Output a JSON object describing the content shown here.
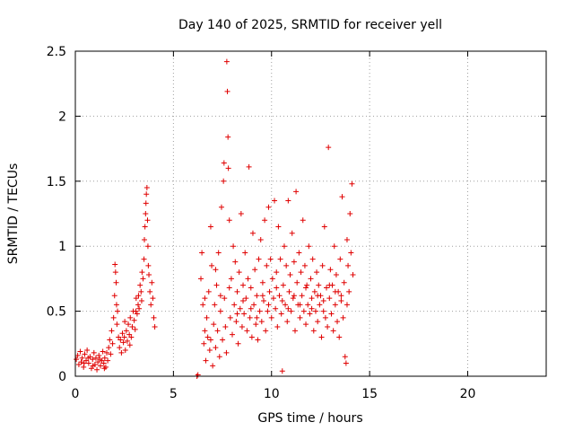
{
  "chart_data": {
    "type": "scatter",
    "title": "Day 140 of 2025, SRMTID for receiver yell",
    "xlabel": "GPS time / hours",
    "ylabel": "SRMTID / TECUs",
    "xlim": [
      0,
      24
    ],
    "ylim": [
      0,
      2.5
    ],
    "xticks": [
      0,
      5,
      10,
      15,
      20
    ],
    "yticks": [
      0,
      0.5,
      1,
      1.5,
      2,
      2.5
    ],
    "xtick_labels": [
      "0",
      "5",
      "10",
      "15",
      "20"
    ],
    "ytick_labels": [
      "0",
      "0.5",
      "1",
      "1.5",
      "2",
      "2.5"
    ],
    "grid": true,
    "marker": "+",
    "series": [
      {
        "name": "SRMTID",
        "color": "#e00000",
        "points": [
          [
            0.05,
            0.13
          ],
          [
            0.12,
            0.16
          ],
          [
            0.18,
            0.09
          ],
          [
            0.25,
            0.19
          ],
          [
            0.3,
            0.11
          ],
          [
            0.35,
            0.14
          ],
          [
            0.42,
            0.07
          ],
          [
            0.48,
            0.17
          ],
          [
            0.55,
            0.12
          ],
          [
            0.6,
            0.2
          ],
          [
            0.68,
            0.1
          ],
          [
            0.75,
            0.15
          ],
          [
            0.82,
            0.06
          ],
          [
            0.88,
            0.13
          ],
          [
            0.95,
            0.18
          ],
          [
            1.0,
            0.09
          ],
          [
            1.05,
            0.14
          ],
          [
            1.1,
            0.05
          ],
          [
            1.15,
            0.11
          ],
          [
            1.2,
            0.16
          ],
          [
            1.28,
            0.08
          ],
          [
            1.35,
            0.12
          ],
          [
            1.4,
            0.19
          ],
          [
            1.45,
            0.1
          ],
          [
            1.5,
            0.14
          ],
          [
            1.55,
            0.07
          ],
          [
            1.6,
            0.18
          ],
          [
            1.65,
            0.12
          ],
          [
            1.7,
            0.22
          ],
          [
            1.75,
            0.28
          ],
          [
            1.8,
            0.17
          ],
          [
            1.85,
            0.35
          ],
          [
            1.9,
            0.25
          ],
          [
            1.95,
            0.45
          ],
          [
            2.0,
            0.62
          ],
          [
            2.02,
            0.86
          ],
          [
            2.05,
            0.8
          ],
          [
            2.08,
            0.72
          ],
          [
            2.1,
            0.55
          ],
          [
            2.12,
            0.4
          ],
          [
            2.15,
            0.5
          ],
          [
            2.2,
            0.3
          ],
          [
            2.25,
            0.22
          ],
          [
            2.3,
            0.28
          ],
          [
            2.35,
            0.18
          ],
          [
            2.4,
            0.33
          ],
          [
            2.45,
            0.26
          ],
          [
            2.5,
            0.3
          ],
          [
            2.55,
            0.2
          ],
          [
            2.6,
            0.35
          ],
          [
            2.65,
            0.27
          ],
          [
            2.7,
            0.4
          ],
          [
            2.75,
            0.32
          ],
          [
            2.8,
            0.45
          ],
          [
            2.85,
            0.3
          ],
          [
            2.9,
            0.38
          ],
          [
            2.95,
            0.5
          ],
          [
            3.0,
            0.43
          ],
          [
            3.05,
            0.36
          ],
          [
            3.1,
            0.6
          ],
          [
            3.15,
            0.48
          ],
          [
            3.2,
            0.55
          ],
          [
            3.25,
            0.52
          ],
          [
            3.3,
            0.7
          ],
          [
            3.35,
            0.65
          ],
          [
            3.4,
            0.8
          ],
          [
            3.45,
            0.75
          ],
          [
            3.5,
            0.9
          ],
          [
            3.52,
            1.05
          ],
          [
            3.55,
            1.15
          ],
          [
            3.58,
            1.25
          ],
          [
            3.6,
            1.33
          ],
          [
            3.62,
            1.4
          ],
          [
            3.65,
            1.45
          ],
          [
            3.68,
            1.2
          ],
          [
            3.7,
            1.0
          ],
          [
            3.72,
            0.85
          ],
          [
            3.75,
            0.78
          ],
          [
            3.8,
            0.65
          ],
          [
            3.85,
            0.55
          ],
          [
            3.9,
            0.72
          ],
          [
            3.95,
            0.6
          ],
          [
            4.0,
            0.45
          ],
          [
            4.05,
            0.38
          ],
          [
            0.45,
            0.1
          ],
          [
            0.65,
            0.14
          ],
          [
            0.9,
            0.08
          ],
          [
            1.25,
            0.13
          ],
          [
            1.48,
            0.06
          ],
          [
            2.52,
            0.42
          ],
          [
            2.78,
            0.24
          ],
          [
            3.08,
            0.5
          ],
          [
            3.22,
            0.62
          ],
          [
            3.38,
            0.58
          ],
          [
            6.2,
            0.0
          ],
          [
            6.25,
            0.01
          ],
          [
            6.4,
            0.75
          ],
          [
            6.45,
            0.95
          ],
          [
            6.5,
            0.55
          ],
          [
            6.55,
            0.25
          ],
          [
            6.6,
            0.35
          ],
          [
            6.65,
            0.12
          ],
          [
            6.7,
            0.45
          ],
          [
            6.75,
            0.3
          ],
          [
            6.8,
            0.65
          ],
          [
            6.85,
            0.2
          ],
          [
            6.9,
            1.15
          ],
          [
            6.95,
            0.85
          ],
          [
            7.0,
            0.08
          ],
          [
            7.05,
            0.4
          ],
          [
            7.1,
            0.55
          ],
          [
            7.15,
            0.22
          ],
          [
            7.2,
            0.7
          ],
          [
            7.25,
            0.35
          ],
          [
            7.3,
            0.95
          ],
          [
            7.35,
            0.15
          ],
          [
            7.4,
            0.5
          ],
          [
            7.45,
            1.3
          ],
          [
            7.5,
            0.28
          ],
          [
            7.55,
            1.5
          ],
          [
            7.58,
            1.64
          ],
          [
            7.6,
            0.6
          ],
          [
            7.65,
            0.38
          ],
          [
            7.7,
            0.18
          ],
          [
            7.72,
            2.42
          ],
          [
            7.75,
            2.19
          ],
          [
            7.78,
            1.84
          ],
          [
            7.8,
            1.6
          ],
          [
            7.85,
            1.2
          ],
          [
            7.9,
            0.45
          ],
          [
            7.95,
            0.75
          ],
          [
            8.0,
            0.32
          ],
          [
            8.05,
            1.0
          ],
          [
            8.1,
            0.55
          ],
          [
            8.15,
            0.88
          ],
          [
            8.2,
            0.42
          ],
          [
            8.25,
            0.65
          ],
          [
            8.3,
            0.25
          ],
          [
            8.35,
            0.8
          ],
          [
            8.4,
            0.52
          ],
          [
            8.45,
            1.25
          ],
          [
            8.5,
            0.38
          ],
          [
            8.55,
            0.7
          ],
          [
            8.6,
            0.48
          ],
          [
            8.65,
            0.95
          ],
          [
            8.7,
            0.6
          ],
          [
            8.75,
            0.35
          ],
          [
            8.8,
            0.75
          ],
          [
            8.85,
            1.61
          ],
          [
            8.9,
            0.45
          ],
          [
            8.95,
            0.68
          ],
          [
            9.0,
            0.3
          ],
          [
            9.05,
            1.1
          ],
          [
            9.1,
            0.55
          ],
          [
            9.15,
            0.82
          ],
          [
            9.2,
            0.4
          ],
          [
            9.25,
            0.62
          ],
          [
            9.3,
            0.28
          ],
          [
            9.35,
            0.9
          ],
          [
            9.4,
            0.5
          ],
          [
            9.45,
            1.05
          ],
          [
            9.5,
            0.42
          ],
          [
            9.55,
            0.72
          ],
          [
            9.6,
            0.58
          ],
          [
            9.65,
            1.2
          ],
          [
            9.7,
            0.35
          ],
          [
            9.75,
            0.85
          ],
          [
            9.8,
            0.5
          ],
          [
            9.85,
            1.3
          ],
          [
            9.9,
            0.65
          ],
          [
            9.95,
            0.9
          ],
          [
            10.0,
            0.45
          ],
          [
            10.05,
            0.75
          ],
          [
            10.1,
            0.6
          ],
          [
            10.15,
            1.35
          ],
          [
            10.2,
            0.52
          ],
          [
            10.25,
            0.8
          ],
          [
            10.3,
            0.38
          ],
          [
            10.35,
            1.15
          ],
          [
            10.4,
            0.62
          ],
          [
            10.45,
            0.9
          ],
          [
            10.5,
            0.48
          ],
          [
            10.55,
            0.04
          ],
          [
            10.6,
            0.7
          ],
          [
            10.65,
            1.0
          ],
          [
            10.7,
            0.55
          ],
          [
            10.75,
            0.85
          ],
          [
            10.8,
            0.42
          ],
          [
            10.85,
            1.35
          ],
          [
            10.9,
            0.65
          ],
          [
            10.95,
            0.78
          ],
          [
            11.0,
            0.5
          ],
          [
            11.05,
            1.1
          ],
          [
            11.1,
            0.6
          ],
          [
            11.15,
            0.88
          ],
          [
            11.2,
            0.35
          ],
          [
            11.25,
            1.42
          ],
          [
            11.3,
            0.72
          ],
          [
            11.35,
            0.55
          ],
          [
            11.4,
            0.95
          ],
          [
            11.45,
            0.45
          ],
          [
            11.5,
            0.8
          ],
          [
            11.55,
            0.62
          ],
          [
            11.6,
            1.2
          ],
          [
            11.65,
            0.5
          ],
          [
            11.7,
            0.85
          ],
          [
            11.75,
            0.4
          ],
          [
            11.8,
            0.7
          ],
          [
            11.85,
            0.55
          ],
          [
            11.9,
            1.0
          ],
          [
            11.95,
            0.48
          ],
          [
            12.0,
            0.75
          ],
          [
            12.05,
            0.6
          ],
          [
            12.1,
            0.9
          ],
          [
            12.15,
            0.35
          ],
          [
            12.2,
            0.65
          ],
          [
            12.25,
            0.5
          ],
          [
            12.3,
            0.8
          ],
          [
            12.35,
            0.42
          ],
          [
            12.4,
            0.7
          ],
          [
            12.45,
            0.55
          ],
          [
            12.5,
            0.62
          ],
          [
            12.55,
            0.3
          ],
          [
            12.6,
            0.85
          ],
          [
            12.65,
            0.5
          ],
          [
            12.7,
            1.15
          ],
          [
            12.75,
            0.45
          ],
          [
            12.8,
            0.68
          ],
          [
            12.85,
            0.38
          ],
          [
            12.9,
            1.76
          ],
          [
            12.95,
            0.6
          ],
          [
            13.0,
            0.82
          ],
          [
            13.05,
            0.48
          ],
          [
            13.1,
            0.7
          ],
          [
            13.15,
            0.35
          ],
          [
            13.2,
            1.0
          ],
          [
            13.25,
            0.55
          ],
          [
            13.3,
            0.78
          ],
          [
            13.35,
            0.42
          ],
          [
            13.4,
            0.65
          ],
          [
            13.45,
            0.3
          ],
          [
            13.5,
            0.9
          ],
          [
            13.55,
            0.58
          ],
          [
            13.6,
            1.38
          ],
          [
            13.65,
            0.45
          ],
          [
            13.7,
            0.72
          ],
          [
            13.75,
            0.15
          ],
          [
            13.8,
            0.1
          ],
          [
            13.85,
            1.05
          ],
          [
            13.9,
            0.85
          ],
          [
            13.95,
            0.65
          ],
          [
            14.0,
            1.25
          ],
          [
            14.05,
            0.95
          ],
          [
            14.1,
            1.48
          ],
          [
            14.15,
            0.78
          ],
          [
            6.6,
            0.6
          ],
          [
            6.9,
            0.28
          ],
          [
            7.15,
            0.82
          ],
          [
            7.4,
            0.62
          ],
          [
            7.85,
            0.68
          ],
          [
            8.25,
            0.48
          ],
          [
            8.55,
            0.58
          ],
          [
            8.95,
            0.52
          ],
          [
            9.25,
            0.45
          ],
          [
            9.55,
            0.62
          ],
          [
            9.85,
            0.55
          ],
          [
            10.25,
            0.68
          ],
          [
            10.55,
            0.58
          ],
          [
            10.85,
            0.52
          ],
          [
            11.15,
            0.62
          ],
          [
            11.45,
            0.55
          ],
          [
            11.75,
            0.68
          ],
          [
            12.05,
            0.52
          ],
          [
            12.35,
            0.62
          ],
          [
            12.65,
            0.58
          ],
          [
            12.95,
            0.7
          ],
          [
            13.25,
            0.65
          ],
          [
            13.55,
            0.62
          ],
          [
            13.85,
            0.55
          ]
        ]
      }
    ]
  }
}
